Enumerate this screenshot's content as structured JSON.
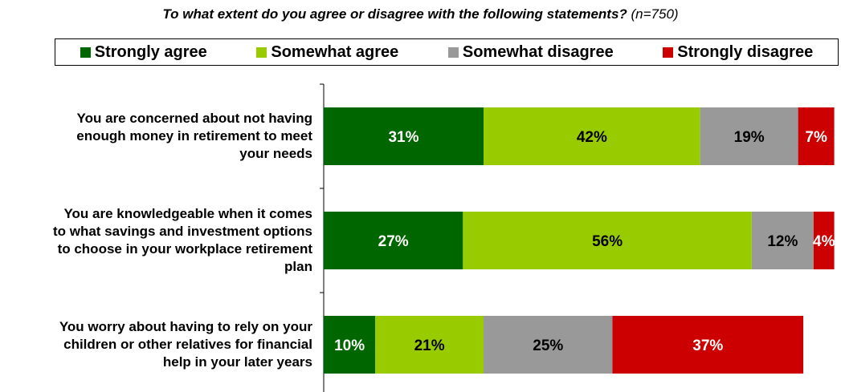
{
  "chart_data": {
    "type": "bar",
    "orientation": "horizontal",
    "stacked": true,
    "title": "To what extent do you agree or disagree with the following statements?",
    "title_note": "(n=750)",
    "legend_position": "top",
    "categories": [
      [
        "You are concerned about not having",
        "enough money in retirement to meet",
        "your needs"
      ],
      [
        "You are knowledgeable when it comes",
        "to what savings and investment options",
        "to choose in your workplace retirement",
        "plan"
      ],
      [
        "You worry about having to rely on your",
        "children or other relatives for financial",
        "help in your later years"
      ]
    ],
    "series": [
      {
        "name": "Strongly agree",
        "color": "#006600",
        "label_color": "#ffffff",
        "values": [
          31,
          27,
          10
        ],
        "labels": [
          "31%",
          "27%",
          "10%"
        ]
      },
      {
        "name": "Somewhat agree",
        "color": "#99cc00",
        "label_color": "#000000",
        "values": [
          42,
          56,
          21
        ],
        "labels": [
          "42%",
          "56%",
          "21%"
        ]
      },
      {
        "name": "Somewhat disagree",
        "color": "#999999",
        "label_color": "#000000",
        "values": [
          19,
          12,
          25
        ],
        "labels": [
          "19%",
          "12%",
          "25%"
        ]
      },
      {
        "name": "Strongly disagree",
        "color": "#cc0000",
        "label_color": "#ffffff",
        "values": [
          7,
          4,
          37
        ],
        "labels": [
          "7%",
          "4%",
          "37%"
        ]
      }
    ],
    "grid": false
  }
}
